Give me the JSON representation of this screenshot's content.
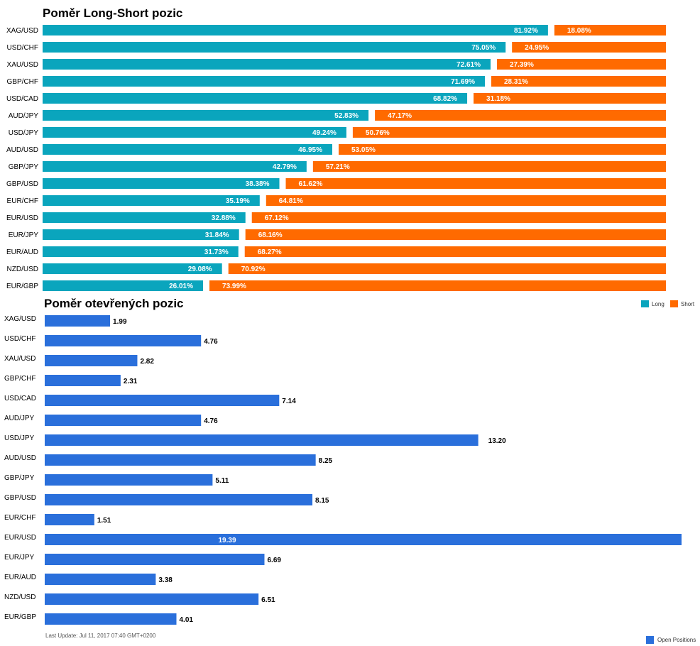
{
  "chart_data": [
    {
      "type": "bar",
      "stacked": "percent",
      "orientation": "horizontal",
      "title": "Poměr Long-Short pozic",
      "categories": [
        "XAG/USD",
        "USD/CHF",
        "XAU/USD",
        "GBP/CHF",
        "USD/CAD",
        "AUD/JPY",
        "USD/JPY",
        "AUD/USD",
        "GBP/JPY",
        "GBP/USD",
        "EUR/CHF",
        "EUR/USD",
        "EUR/JPY",
        "EUR/AUD",
        "NZD/USD",
        "EUR/GBP"
      ],
      "series": [
        {
          "name": "Long",
          "color": "#0aa5bd",
          "values": [
            81.92,
            75.05,
            72.61,
            71.69,
            68.82,
            52.83,
            49.24,
            46.95,
            42.79,
            38.38,
            35.19,
            32.88,
            31.84,
            31.73,
            29.08,
            26.01
          ],
          "labels": [
            "81.92%",
            "75.05%",
            "72.61%",
            "71.69%",
            "68.82%",
            "52.83%",
            "49.24%",
            "46.95%",
            "42.79%",
            "38.38%",
            "35.19%",
            "32.88%",
            "31.84%",
            "31.73%",
            "29.08%",
            "26.01%"
          ]
        },
        {
          "name": "Short",
          "color": "#ff6a00",
          "values": [
            18.08,
            24.95,
            27.39,
            28.31,
            31.18,
            47.17,
            50.76,
            53.05,
            57.21,
            61.62,
            64.81,
            67.12,
            68.16,
            68.27,
            70.92,
            73.99
          ],
          "labels": [
            "18.08%",
            "24.95%",
            "27.39%",
            "28.31%",
            "31.18%",
            "47.17%",
            "50.76%",
            "53.05%",
            "57.21%",
            "61.62%",
            "64.81%",
            "67.12%",
            "68.16%",
            "68.27%",
            "70.92%",
            "73.99%"
          ]
        }
      ],
      "legend": "top-right (below chart)",
      "grid": false
    },
    {
      "type": "bar",
      "orientation": "horizontal",
      "title": "Poměr otevřených pozic",
      "categories": [
        "XAG/USD",
        "USD/CHF",
        "XAU/USD",
        "GBP/CHF",
        "USD/CAD",
        "AUD/JPY",
        "USD/JPY",
        "AUD/USD",
        "GBP/JPY",
        "GBP/USD",
        "EUR/CHF",
        "EUR/USD",
        "EUR/JPY",
        "EUR/AUD",
        "NZD/USD",
        "EUR/GBP"
      ],
      "series": [
        {
          "name": "Open Positions",
          "color": "#2a6fdb",
          "values": [
            1.99,
            4.76,
            2.82,
            2.31,
            7.14,
            4.76,
            13.2,
            8.25,
            5.11,
            8.15,
            1.51,
            19.39,
            6.69,
            3.38,
            6.51,
            4.01
          ],
          "labels": [
            "1.99",
            "4.76",
            "2.82",
            "2.31",
            "7.14",
            "4.76",
            "13.20",
            "8.25",
            "5.11",
            "8.15",
            "1.51",
            "19.39",
            "6.69",
            "3.38",
            "6.51",
            "4.01"
          ]
        }
      ],
      "xlim": [
        0,
        19.39
      ],
      "legend": "bottom-right",
      "grid": false
    }
  ],
  "footer": {
    "last_update": "Last Update: Jul 11, 2017 07:40 GMT+0200"
  }
}
